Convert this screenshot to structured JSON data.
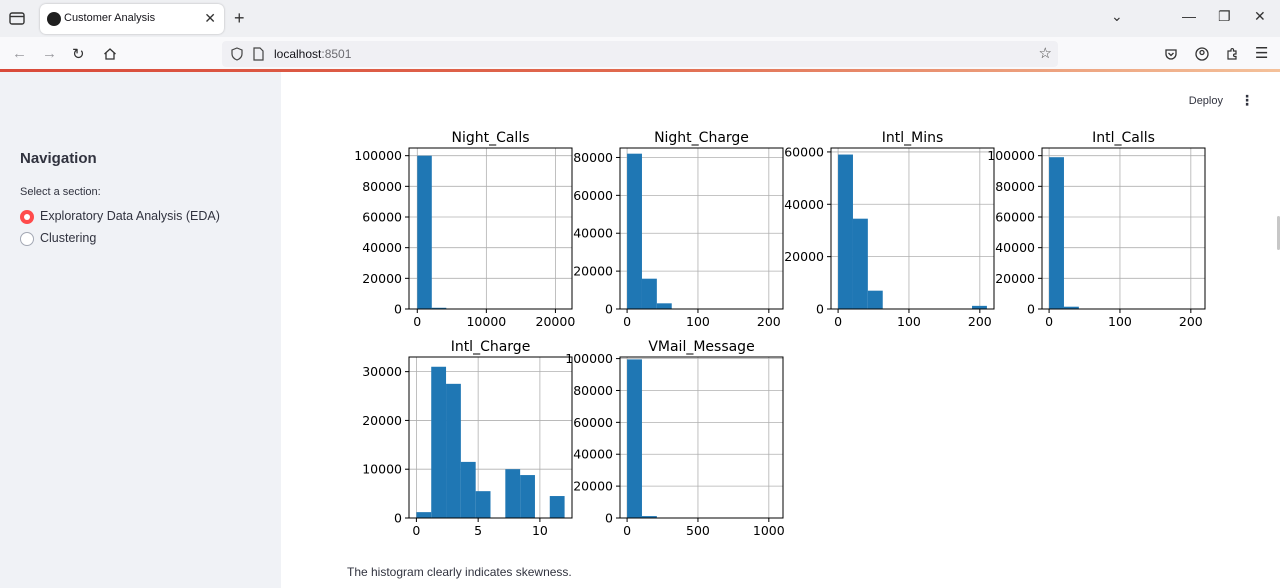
{
  "browser": {
    "tab_title": "Customer Analysis",
    "url_host": "localhost",
    "url_port": ":8501"
  },
  "sidebar": {
    "title": "Navigation",
    "radio_label": "Select a section:",
    "options": [
      {
        "label": "Exploratory Data Analysis (EDA)",
        "selected": true
      },
      {
        "label": "Clustering",
        "selected": false
      }
    ]
  },
  "header": {
    "deploy_label": "Deploy"
  },
  "caption": "The histogram clearly indicates skewness.",
  "colors": {
    "bar": "#1f77b4",
    "accent": "#ff4b4b"
  },
  "chart_data": [
    {
      "type": "bar",
      "title": "Night_Calls",
      "xlim": [
        -1200,
        22400
      ],
      "ylim": [
        0,
        105000
      ],
      "xticks": [
        0,
        10000,
        20000
      ],
      "yticks": [
        0,
        20000,
        40000,
        60000,
        80000,
        100000
      ],
      "bins": [
        [
          0,
          2100,
          100000
        ],
        [
          2100,
          4200,
          800
        ],
        [
          4200,
          6300,
          0
        ],
        [
          6300,
          8400,
          0
        ],
        [
          8400,
          10500,
          0
        ],
        [
          10500,
          12600,
          0
        ],
        [
          12600,
          14700,
          0
        ],
        [
          14700,
          16800,
          0
        ],
        [
          16800,
          18900,
          0
        ],
        [
          18900,
          21000,
          0
        ]
      ]
    },
    {
      "type": "bar",
      "title": "Night_Charge",
      "xlim": [
        -10,
        220
      ],
      "ylim": [
        0,
        85000
      ],
      "xticks": [
        0,
        100,
        200
      ],
      "yticks": [
        0,
        20000,
        40000,
        60000,
        80000
      ],
      "bins": [
        [
          0,
          21,
          82000
        ],
        [
          21,
          42,
          16000
        ],
        [
          42,
          63,
          3000
        ],
        [
          63,
          84,
          200
        ],
        [
          84,
          105,
          0
        ],
        [
          105,
          126,
          0
        ],
        [
          126,
          147,
          0
        ],
        [
          147,
          168,
          0
        ],
        [
          168,
          189,
          0
        ],
        [
          189,
          210,
          0
        ]
      ]
    },
    {
      "type": "bar",
      "title": "Intl_Mins",
      "xlim": [
        -10,
        220
      ],
      "ylim": [
        0,
        61500
      ],
      "xticks": [
        0,
        100,
        200
      ],
      "yticks": [
        0,
        20000,
        40000,
        60000
      ],
      "bins": [
        [
          0,
          21,
          59000
        ],
        [
          21,
          42,
          34500
        ],
        [
          42,
          63,
          7000
        ],
        [
          63,
          84,
          0
        ],
        [
          84,
          105,
          0
        ],
        [
          105,
          126,
          0
        ],
        [
          126,
          147,
          0
        ],
        [
          147,
          168,
          0
        ],
        [
          168,
          189,
          0
        ],
        [
          189,
          210,
          1200
        ]
      ]
    },
    {
      "type": "bar",
      "title": "Intl_Calls",
      "xlim": [
        -10,
        220
      ],
      "ylim": [
        0,
        105000
      ],
      "xticks": [
        0,
        100,
        200
      ],
      "yticks": [
        0,
        20000,
        40000,
        60000,
        80000,
        100000
      ],
      "bins": [
        [
          0,
          21,
          99000
        ],
        [
          21,
          42,
          1500
        ],
        [
          42,
          63,
          100
        ],
        [
          63,
          84,
          0
        ],
        [
          84,
          105,
          0
        ],
        [
          105,
          126,
          0
        ],
        [
          126,
          147,
          0
        ],
        [
          147,
          168,
          0
        ],
        [
          168,
          189,
          0
        ],
        [
          189,
          210,
          0
        ]
      ]
    },
    {
      "type": "bar",
      "title": "Intl_Charge",
      "xlim": [
        -0.6,
        12.6
      ],
      "ylim": [
        0,
        33000
      ],
      "xticks": [
        0,
        5,
        10
      ],
      "yticks": [
        0,
        10000,
        20000,
        30000
      ],
      "bins": [
        [
          0,
          1.2,
          1200
        ],
        [
          1.2,
          2.4,
          31000
        ],
        [
          2.4,
          3.6,
          27500
        ],
        [
          3.6,
          4.8,
          11500
        ],
        [
          4.8,
          6.0,
          5500
        ],
        [
          6.0,
          7.2,
          0
        ],
        [
          7.2,
          8.4,
          10000
        ],
        [
          8.4,
          9.6,
          8800
        ],
        [
          9.6,
          10.8,
          0
        ],
        [
          10.8,
          12.0,
          4500
        ]
      ]
    },
    {
      "type": "bar",
      "title": "VMail_Message",
      "xlim": [
        -50,
        1100
      ],
      "ylim": [
        0,
        101000
      ],
      "xticks": [
        0,
        500,
        1000
      ],
      "yticks": [
        0,
        20000,
        40000,
        60000,
        80000,
        100000
      ],
      "bins": [
        [
          0,
          105,
          99500
        ],
        [
          105,
          210,
          1200
        ],
        [
          210,
          315,
          0
        ],
        [
          315,
          420,
          0
        ],
        [
          420,
          525,
          0
        ],
        [
          525,
          630,
          0
        ],
        [
          630,
          735,
          0
        ],
        [
          735,
          840,
          0
        ],
        [
          840,
          945,
          0
        ],
        [
          945,
          1050,
          0
        ]
      ]
    }
  ]
}
